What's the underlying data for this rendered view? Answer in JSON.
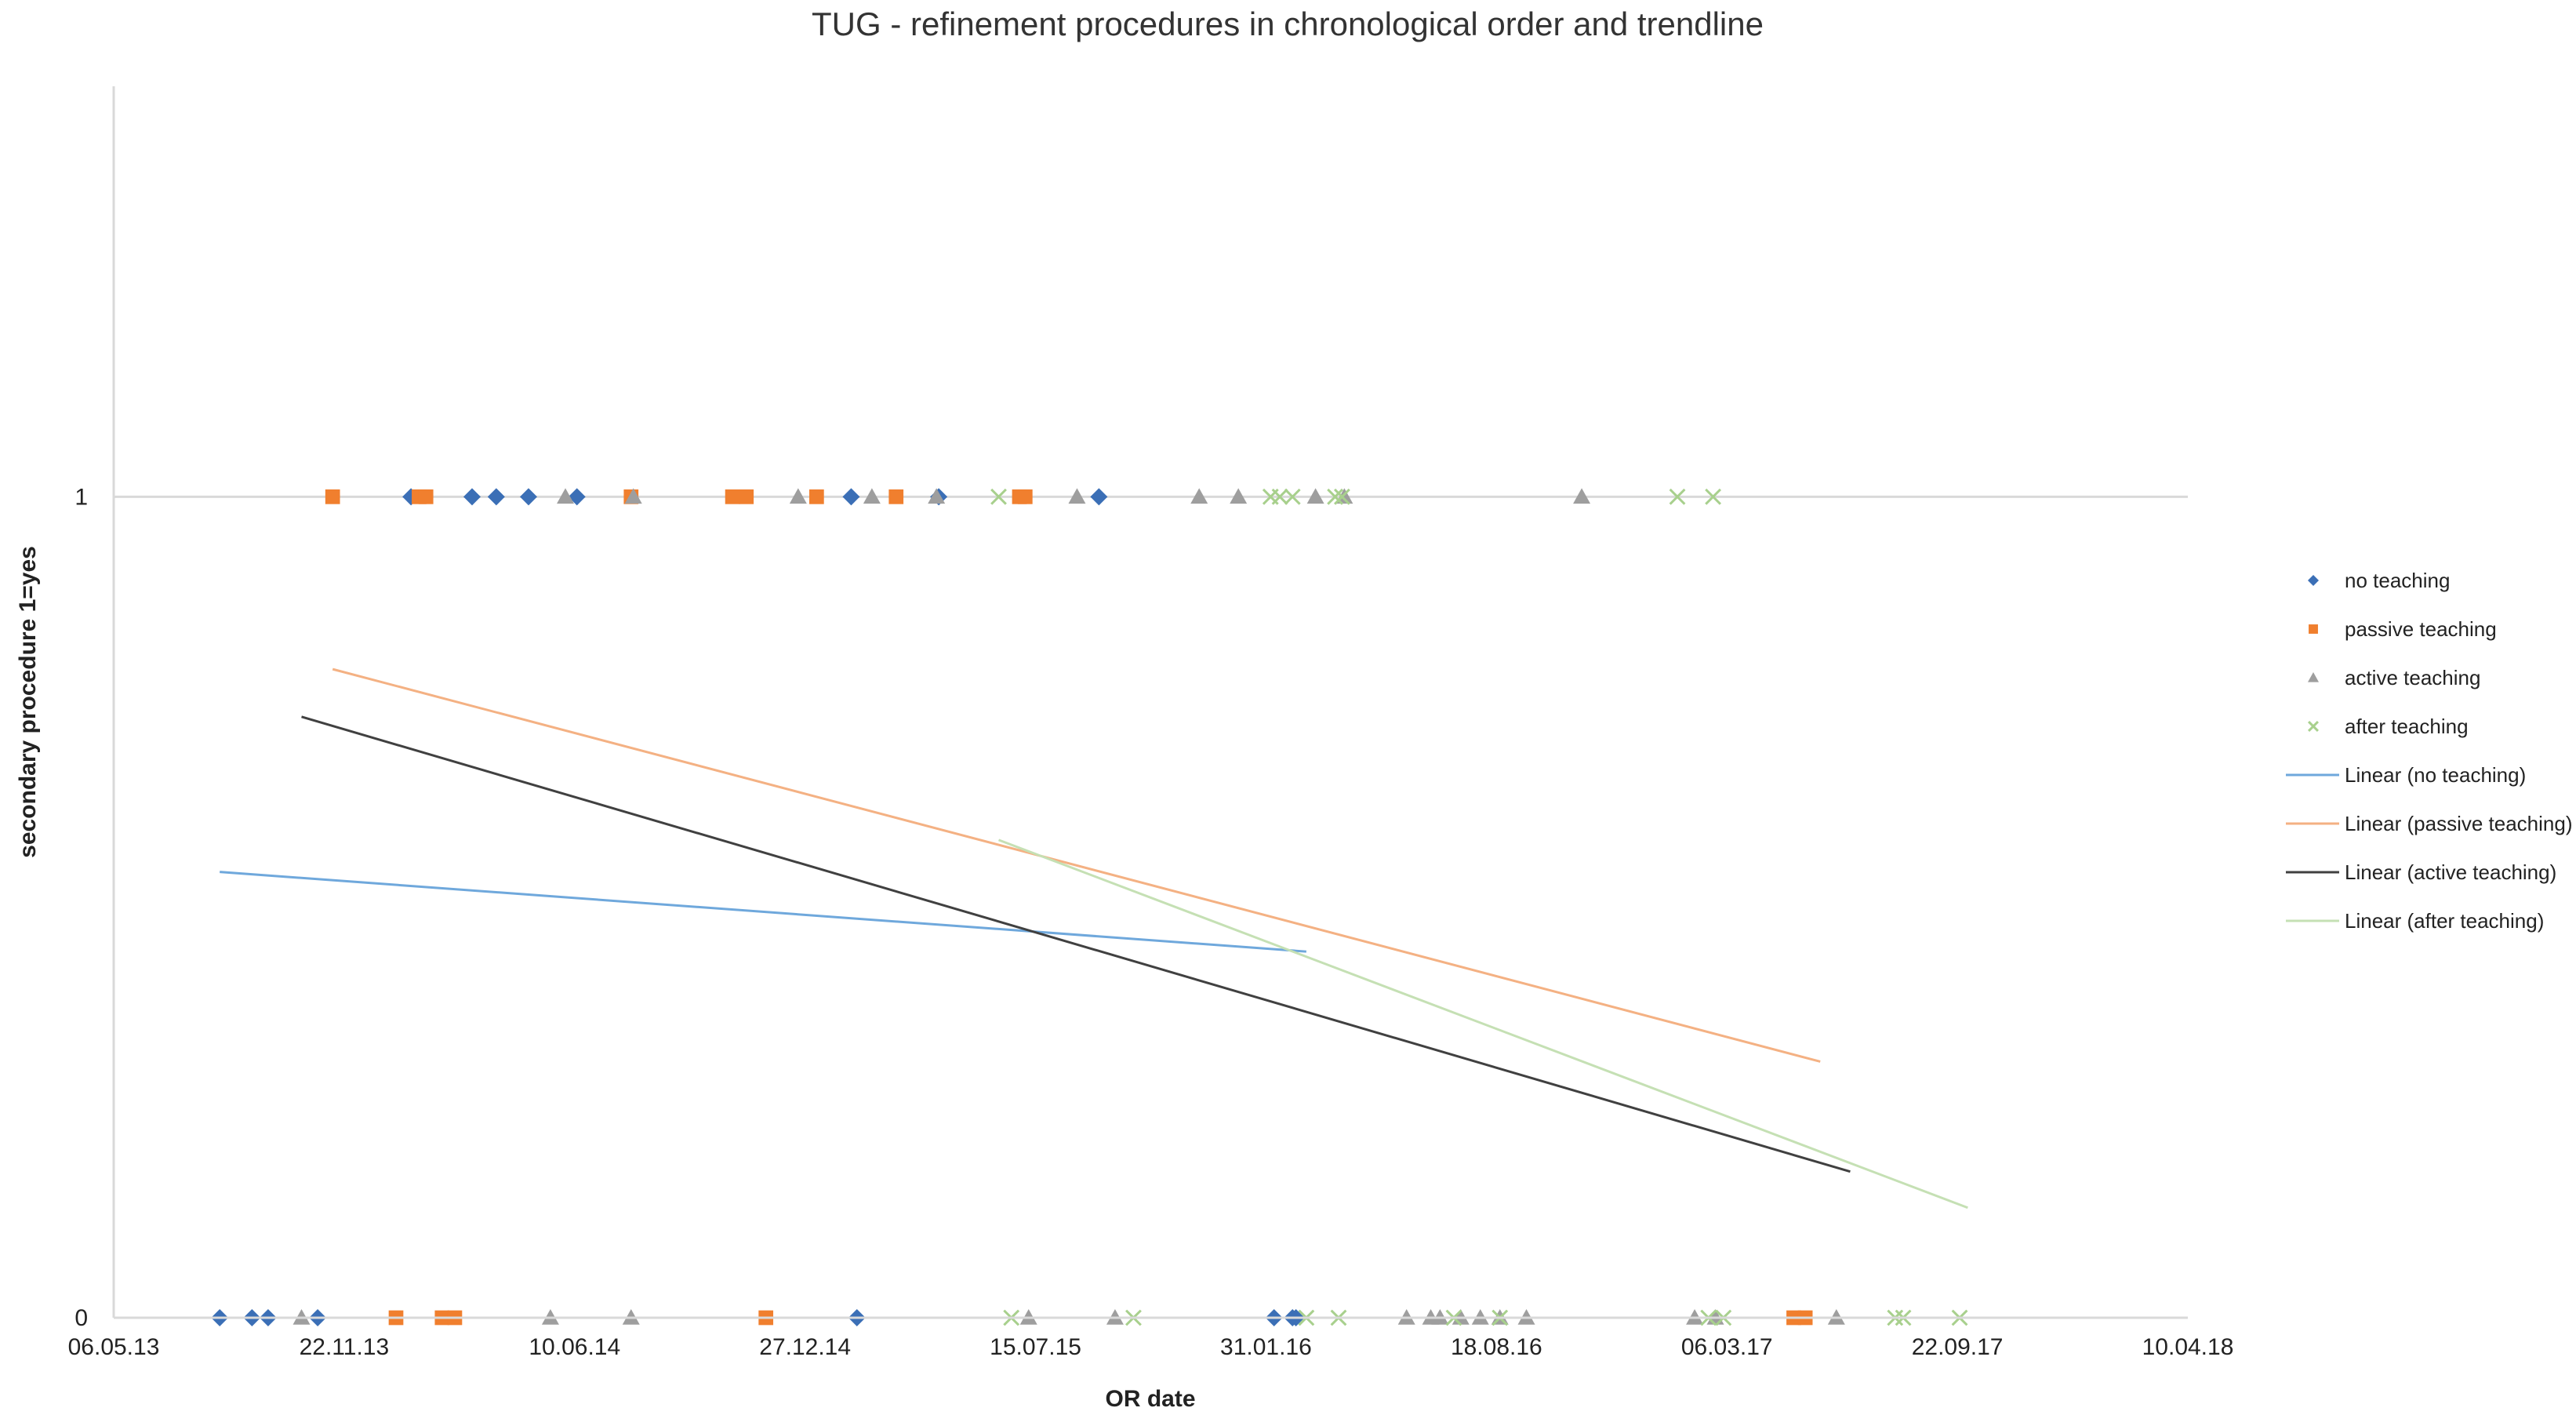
{
  "chart_data": {
    "type": "scatter",
    "title": "TUG - refinement procedures in chronological order and trendline",
    "xlabel": "OR date",
    "ylabel": "secondary procedure 1=yes",
    "x_tick_labels": [
      "06.05.13",
      "22.11.13",
      "10.06.14",
      "27.12.14",
      "15.07.15",
      "31.01.16",
      "18.08.16",
      "06.03.17",
      "22.09.17",
      "10.04.18"
    ],
    "xlim": [
      0,
      1800
    ],
    "ylim": [
      0,
      1.5
    ],
    "y_ticks": [
      {
        "value": 0,
        "label": "0"
      },
      {
        "value": 1,
        "label": "1"
      }
    ],
    "y_gridlines": [
      1
    ],
    "legend_position": "right",
    "series": [
      {
        "name": "no teaching",
        "marker": "diamond",
        "color": "#3B6FB6",
        "points": [
          [
            92,
            0
          ],
          [
            120,
            0
          ],
          [
            134,
            0
          ],
          [
            177,
            0
          ],
          [
            645,
            0
          ],
          [
            1007,
            0
          ],
          [
            1023,
            0
          ],
          [
            1026,
            0
          ],
          [
            258,
            1
          ],
          [
            311,
            1
          ],
          [
            332,
            1
          ],
          [
            360,
            1
          ],
          [
            402,
            1
          ],
          [
            640,
            1
          ],
          [
            716,
            1
          ],
          [
            855,
            1
          ]
        ]
      },
      {
        "name": "passive teaching",
        "marker": "square",
        "color": "#F07F2E",
        "points": [
          [
            245,
            0
          ],
          [
            285,
            0
          ],
          [
            296,
            0
          ],
          [
            566,
            0
          ],
          [
            1458,
            0
          ],
          [
            1468,
            0
          ],
          [
            190,
            1
          ],
          [
            265,
            1
          ],
          [
            271,
            1
          ],
          [
            449,
            1
          ],
          [
            537,
            1
          ],
          [
            549,
            1
          ],
          [
            610,
            1
          ],
          [
            679,
            1
          ],
          [
            786,
            1
          ],
          [
            791,
            1
          ]
        ]
      },
      {
        "name": "active teaching",
        "marker": "triangle",
        "color": "#9E9E9E",
        "points": [
          [
            163,
            0
          ],
          [
            379,
            0
          ],
          [
            449,
            0
          ],
          [
            794,
            0
          ],
          [
            869,
            0
          ],
          [
            1122,
            0
          ],
          [
            1143,
            0
          ],
          [
            1151,
            0
          ],
          [
            1169,
            0
          ],
          [
            1186,
            0
          ],
          [
            1203,
            0
          ],
          [
            1226,
            0
          ],
          [
            1372,
            0
          ],
          [
            1390,
            0
          ],
          [
            1495,
            0
          ],
          [
            392,
            1
          ],
          [
            451,
            1
          ],
          [
            594,
            1
          ],
          [
            658,
            1
          ],
          [
            714,
            1
          ],
          [
            836,
            1
          ],
          [
            942,
            1
          ],
          [
            976,
            1
          ],
          [
            1043,
            1
          ],
          [
            1068,
            1
          ],
          [
            1274,
            1
          ]
        ]
      },
      {
        "name": "after teaching",
        "marker": "cross",
        "color": "#A8D08D",
        "points": [
          [
            779,
            0
          ],
          [
            885,
            0
          ],
          [
            1035,
            0
          ],
          [
            1063,
            0
          ],
          [
            1163,
            0
          ],
          [
            1203,
            0
          ],
          [
            1384,
            0
          ],
          [
            1397,
            0
          ],
          [
            1546,
            0
          ],
          [
            1553,
            0
          ],
          [
            1602,
            0
          ],
          [
            768,
            1
          ],
          [
            1004,
            1
          ],
          [
            1012,
            1
          ],
          [
            1023,
            1
          ],
          [
            1060,
            1
          ],
          [
            1066,
            1
          ],
          [
            1357,
            1
          ],
          [
            1388,
            1
          ]
        ]
      }
    ],
    "trendlines": [
      {
        "name": "Linear  (no teaching)",
        "color": "#6FA8DC",
        "points": [
          [
            92,
            0.543
          ],
          [
            1035,
            0.446
          ]
        ]
      },
      {
        "name": "Linear  (passive teaching)",
        "color": "#F4B183",
        "points": [
          [
            190,
            0.79
          ],
          [
            1481,
            0.312
          ]
        ]
      },
      {
        "name": "Linear  (active teaching)",
        "color": "#404040",
        "points": [
          [
            163,
            0.732
          ],
          [
            1507,
            0.178
          ]
        ]
      },
      {
        "name": "Linear  (after teaching)",
        "color": "#C5E0B4",
        "points": [
          [
            768,
            0.582
          ],
          [
            1609,
            0.134
          ]
        ]
      }
    ],
    "legend": [
      {
        "label": "no teaching",
        "kind": "marker",
        "marker": "diamond",
        "color": "#3B6FB6"
      },
      {
        "label": "passive teaching",
        "kind": "marker",
        "marker": "square",
        "color": "#F07F2E"
      },
      {
        "label": "active teaching",
        "kind": "marker",
        "marker": "triangle",
        "color": "#9E9E9E"
      },
      {
        "label": "after teaching",
        "kind": "marker",
        "marker": "cross",
        "color": "#A8D08D"
      },
      {
        "label": "Linear  (no teaching)",
        "kind": "line",
        "color": "#6FA8DC"
      },
      {
        "label": "Linear  (passive teaching)",
        "kind": "line",
        "color": "#F4B183"
      },
      {
        "label": "Linear  (active teaching)",
        "kind": "line",
        "color": "#404040"
      },
      {
        "label": "Linear  (after teaching)",
        "kind": "line",
        "color": "#C5E0B4"
      }
    ]
  }
}
